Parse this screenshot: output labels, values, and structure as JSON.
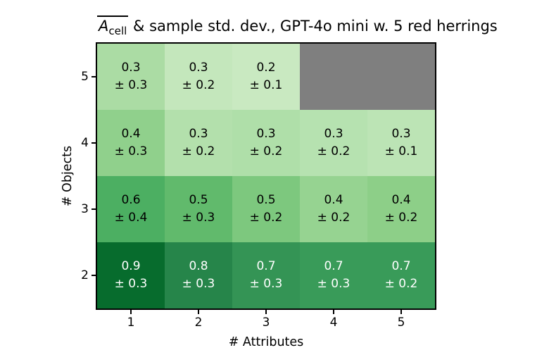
{
  "title_parts": {
    "symbol": "A",
    "subscript": "cell",
    "suffix": " & sample std. dev., GPT-4o mini w. 5 red herrings"
  },
  "chart_data": {
    "type": "heatmap",
    "title": "Ā_cell & sample std. dev., GPT-4o mini w. 5 red herrings",
    "xlabel": "# Attributes",
    "ylabel": "# Objects",
    "x_ticks": [
      "1",
      "2",
      "3",
      "4",
      "5"
    ],
    "y_ticks": [
      "5",
      "4",
      "3",
      "2"
    ],
    "colormap": "Greens",
    "missing_color": "#7f7f7f",
    "grid": false,
    "rows": [
      {
        "objects": 5,
        "cells": [
          {
            "mean": 0.3,
            "std": 0.3,
            "value_label": "0.3",
            "std_label": "± 0.3",
            "color": "#abdca4",
            "text_color": "#000000"
          },
          {
            "mean": 0.3,
            "std": 0.2,
            "value_label": "0.3",
            "std_label": "± 0.2",
            "color": "#c4e7bc",
            "text_color": "#000000"
          },
          {
            "mean": 0.2,
            "std": 0.1,
            "value_label": "0.2",
            "std_label": "± 0.1",
            "color": "#c9e9c1",
            "text_color": "#000000"
          },
          {
            "mean": null,
            "std": null,
            "value_label": null,
            "std_label": null,
            "color": "#7f7f7f",
            "text_color": null
          },
          {
            "mean": null,
            "std": null,
            "value_label": null,
            "std_label": null,
            "color": "#7f7f7f",
            "text_color": null
          }
        ]
      },
      {
        "objects": 4,
        "cells": [
          {
            "mean": 0.4,
            "std": 0.3,
            "value_label": "0.4",
            "std_label": "± 0.3",
            "color": "#90d08c",
            "text_color": "#000000"
          },
          {
            "mean": 0.3,
            "std": 0.2,
            "value_label": "0.3",
            "std_label": "± 0.2",
            "color": "#b3e0ac",
            "text_color": "#000000"
          },
          {
            "mean": 0.3,
            "std": 0.2,
            "value_label": "0.3",
            "std_label": "± 0.2",
            "color": "#afdfa9",
            "text_color": "#000000"
          },
          {
            "mean": 0.3,
            "std": 0.2,
            "value_label": "0.3",
            "std_label": "± 0.2",
            "color": "#b6e2b0",
            "text_color": "#000000"
          },
          {
            "mean": 0.3,
            "std": 0.1,
            "value_label": "0.3",
            "std_label": "± 0.1",
            "color": "#bce4b5",
            "text_color": "#000000"
          }
        ]
      },
      {
        "objects": 3,
        "cells": [
          {
            "mean": 0.6,
            "std": 0.4,
            "value_label": "0.6",
            "std_label": "± 0.4",
            "color": "#4caf62",
            "text_color": "#000000"
          },
          {
            "mean": 0.5,
            "std": 0.3,
            "value_label": "0.5",
            "std_label": "± 0.3",
            "color": "#61ba6c",
            "text_color": "#000000"
          },
          {
            "mean": 0.5,
            "std": 0.2,
            "value_label": "0.5",
            "std_label": "± 0.2",
            "color": "#7dc87e",
            "text_color": "#000000"
          },
          {
            "mean": 0.4,
            "std": 0.2,
            "value_label": "0.4",
            "std_label": "± 0.2",
            "color": "#96d391",
            "text_color": "#000000"
          },
          {
            "mean": 0.4,
            "std": 0.2,
            "value_label": "0.4",
            "std_label": "± 0.2",
            "color": "#8dcf88",
            "text_color": "#000000"
          }
        ]
      },
      {
        "objects": 2,
        "cells": [
          {
            "mean": 0.9,
            "std": 0.3,
            "value_label": "0.9",
            "std_label": "± 0.3",
            "color": "#076c2d",
            "text_color": "#ffffff"
          },
          {
            "mean": 0.8,
            "std": 0.3,
            "value_label": "0.8",
            "std_label": "± 0.3",
            "color": "#26854a",
            "text_color": "#ffffff"
          },
          {
            "mean": 0.7,
            "std": 0.3,
            "value_label": "0.7",
            "std_label": "± 0.3",
            "color": "#349455",
            "text_color": "#ffffff"
          },
          {
            "mean": 0.7,
            "std": 0.3,
            "value_label": "0.7",
            "std_label": "± 0.3",
            "color": "#399b59",
            "text_color": "#ffffff"
          },
          {
            "mean": 0.7,
            "std": 0.2,
            "value_label": "0.7",
            "std_label": "± 0.2",
            "color": "#399b59",
            "text_color": "#ffffff"
          }
        ]
      }
    ]
  }
}
